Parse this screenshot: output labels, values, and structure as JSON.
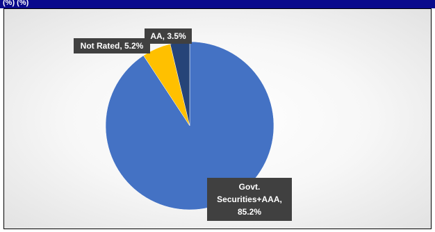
{
  "header": {
    "title": "(%) (%)"
  },
  "chart_data": {
    "type": "pie",
    "start_angle_deg": 0,
    "direction": "clockwise",
    "slices": [
      {
        "name": "Govt. Securities+AAA",
        "value": 85.2,
        "label_lines": [
          "Govt.",
          "Securities+AAA,",
          "85.2%"
        ],
        "color": "#4472C4"
      },
      {
        "name": "Not Rated",
        "value": 5.2,
        "label_lines": [
          "Not Rated, 5.2%"
        ],
        "color": "#FFC000"
      },
      {
        "name": "AA",
        "value": 3.5,
        "label_lines": [
          "AA, 3.5%"
        ],
        "color": "#264478"
      }
    ]
  }
}
